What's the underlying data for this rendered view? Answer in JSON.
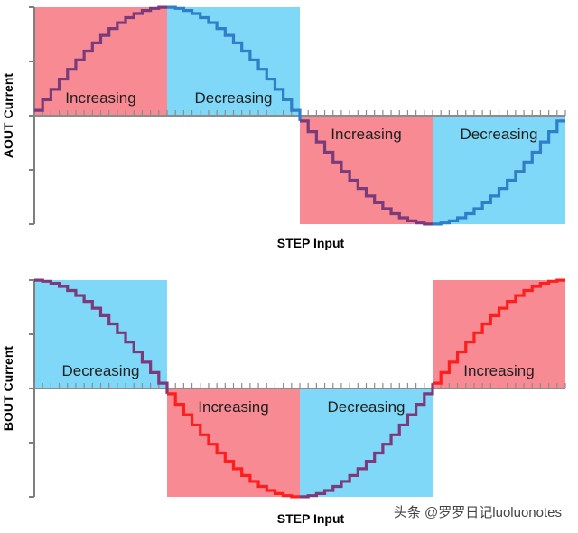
{
  "chart_data": [
    {
      "type": "line",
      "ylabel": "AOUT Current",
      "xlabel": "STEP Input",
      "x_range": [
        0,
        1
      ],
      "ylim": [
        -1,
        1
      ],
      "steps_per_cycle": 64,
      "step_shape": "sine",
      "regions": [
        {
          "label": "Increasing",
          "start": 0.0,
          "end": 0.25,
          "y_from": 0,
          "y_to": 1,
          "color": "#f78a92",
          "line_color": "#7b3a7a"
        },
        {
          "label": "Decreasing",
          "start": 0.25,
          "end": 0.5,
          "y_from": 0,
          "y_to": 1,
          "color": "#7fd8f7",
          "line_color": "#2e7fc7"
        },
        {
          "label": "Increasing",
          "start": 0.5,
          "end": 0.75,
          "y_from": -1,
          "y_to": 0,
          "color": "#f78a92",
          "line_color": "#7b3a7a"
        },
        {
          "label": "Decreasing",
          "start": 0.75,
          "end": 1.0,
          "y_from": -1,
          "y_to": 0,
          "color": "#7fd8f7",
          "line_color": "#2e7fc7"
        }
      ]
    },
    {
      "type": "line",
      "ylabel": "BOUT Current",
      "xlabel": "STEP Input",
      "x_range": [
        0,
        1
      ],
      "ylim": [
        -1,
        1
      ],
      "steps_per_cycle": 64,
      "step_shape": "cosine",
      "regions": [
        {
          "label": "Decreasing",
          "start": 0.0,
          "end": 0.25,
          "y_from": 0,
          "y_to": 1,
          "color": "#7fd8f7",
          "line_color": "#7b3a7a"
        },
        {
          "label": "Increasing",
          "start": 0.25,
          "end": 0.5,
          "y_from": -1,
          "y_to": 0,
          "color": "#f78a92",
          "line_color": "#ff1e1e"
        },
        {
          "label": "Decreasing",
          "start": 0.5,
          "end": 0.75,
          "y_from": -1,
          "y_to": 0,
          "color": "#7fd8f7",
          "line_color": "#7b3a7a"
        },
        {
          "label": "Increasing",
          "start": 0.75,
          "end": 1.0,
          "y_from": 0,
          "y_to": 1,
          "color": "#f78a92",
          "line_color": "#ff1e1e"
        }
      ]
    }
  ],
  "watermark": "头条 @罗罗日记luoluonotes"
}
